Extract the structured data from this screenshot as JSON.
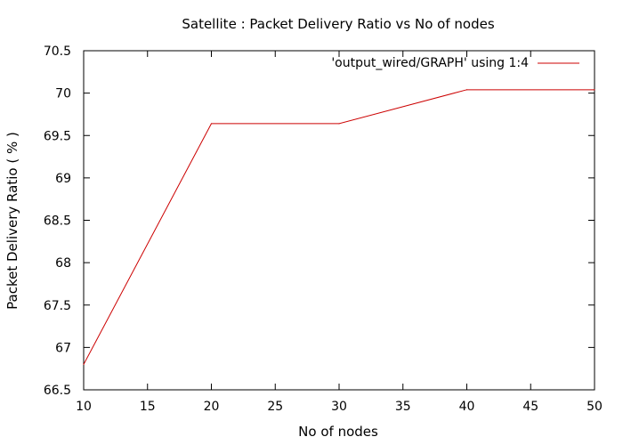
{
  "chart_data": {
    "type": "line",
    "title": "Satellite : Packet Delivery Ratio vs No of nodes",
    "xlabel": "No of nodes",
    "ylabel": "Packet Delivery Ratio ( % )",
    "xlim": [
      10,
      50
    ],
    "ylim": [
      66.5,
      70.5
    ],
    "xticks": [
      "10",
      "15",
      "20",
      "25",
      "30",
      "35",
      "40",
      "45",
      "50"
    ],
    "yticks": [
      "66.5",
      "67",
      "67.5",
      "68",
      "68.5",
      "69",
      "69.5",
      "70",
      "70.5"
    ],
    "grid": false,
    "legend_position": "top-right",
    "series": [
      {
        "name": "'output_wired/GRAPH' using 1:4",
        "color": "#cc0000",
        "x": [
          10,
          20,
          30,
          40,
          50
        ],
        "y": [
          66.8,
          69.64,
          69.64,
          70.04,
          70.04
        ]
      }
    ]
  }
}
